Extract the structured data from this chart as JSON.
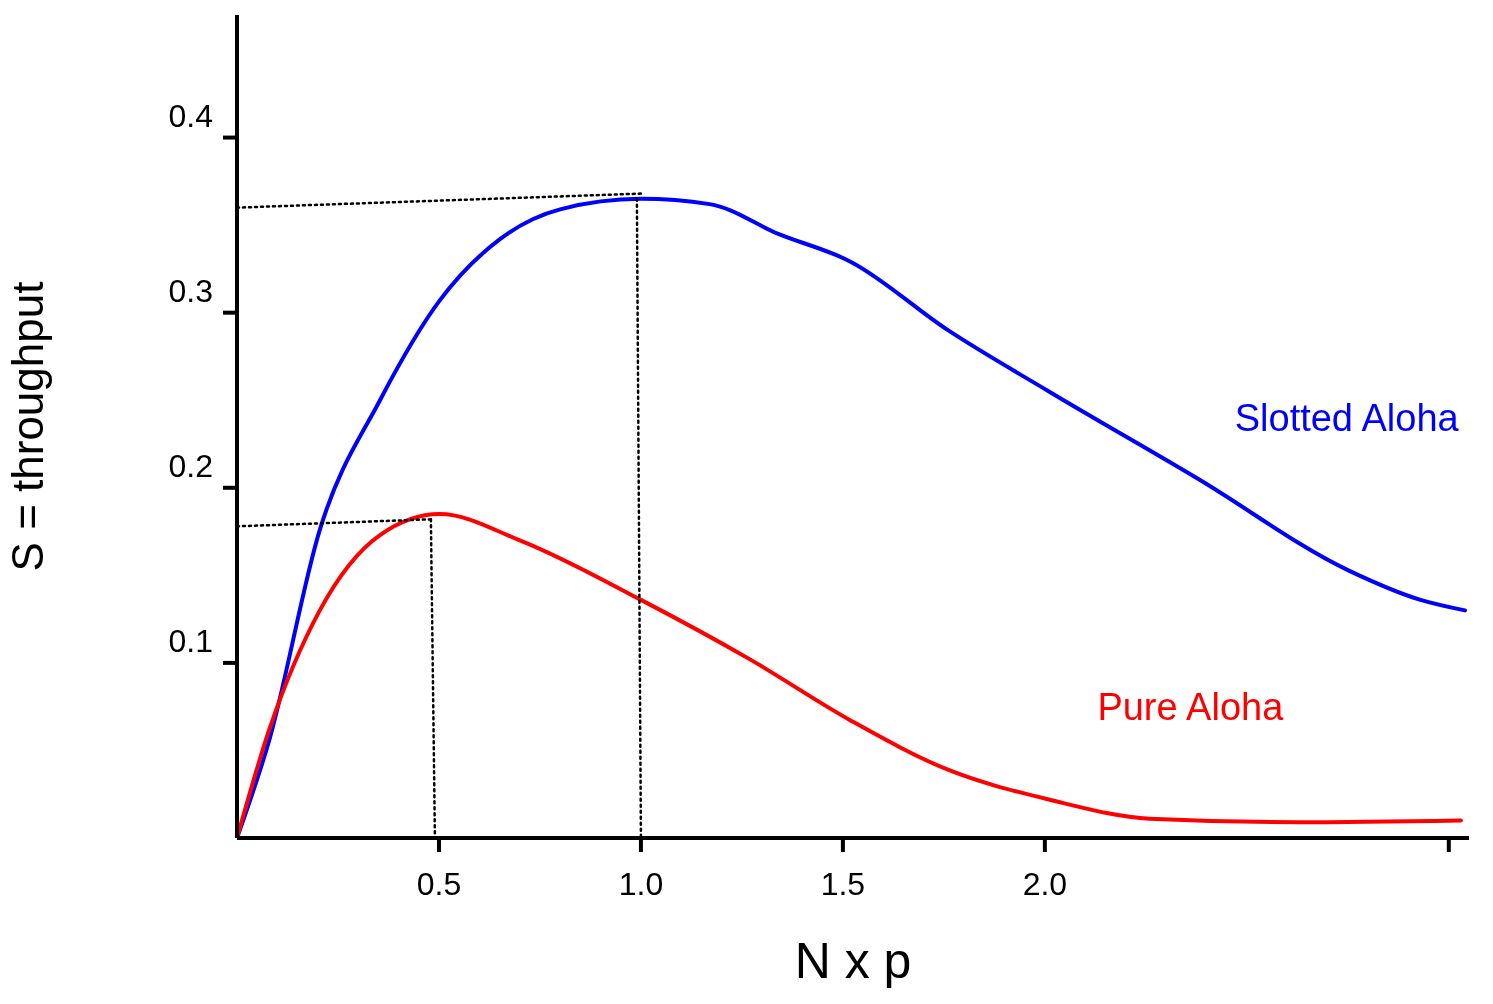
{
  "chart_data": {
    "type": "line",
    "xlabel": "N x p",
    "ylabel": "S = throughput",
    "xlim": [
      0,
      3.05
    ],
    "ylim": [
      0,
      0.47
    ],
    "xticks": [
      0.5,
      {
        "value": 1,
        "label": "1.0"
      },
      1.5,
      {
        "value": 2,
        "label": "2.0"
      },
      {
        "value": 3,
        "label": null
      }
    ],
    "yticks": [
      0.1,
      0.2,
      0.3,
      0.4
    ],
    "marker": "none",
    "line_style": "solid",
    "series": [
      {
        "name": "Slotted Aloha",
        "color": "#0000ff",
        "x": [
          0,
          0.08,
          0.205,
          0.354,
          0.502,
          0.651,
          0.8,
          1.0,
          1.17,
          1.34,
          1.52,
          1.76,
          2.01,
          2.38,
          2.75,
          2.93,
          3.04
        ],
        "values": [
          0,
          0.056,
          0.176,
          0.25,
          0.307,
          0.342,
          0.359,
          0.365,
          0.362,
          0.345,
          0.329,
          0.29,
          0.255,
          0.205,
          0.153,
          0.136,
          0.13
        ]
      },
      {
        "name": "Pure Aloha",
        "color": "#ff0000",
        "x": [
          0,
          0.08,
          0.205,
          0.354,
          0.502,
          0.7,
          1.0,
          1.27,
          1.52,
          1.76,
          2.01,
          2.26,
          2.63,
          3.03
        ],
        "values": [
          0,
          0.062,
          0.13,
          0.173,
          0.185,
          0.17,
          0.136,
          0.102,
          0.067,
          0.039,
          0.022,
          0.011,
          0.009,
          0.01
        ]
      },
      {
        "color": "#000000",
        "line_style": "dotted",
        "x": [
          0,
          1.0
        ],
        "values": [
          0.36,
          0.368
        ]
      },
      {
        "color": "#000000",
        "line_style": "dotted",
        "x": [
          0.99,
          1.0
        ],
        "values": [
          0.365,
          0
        ]
      },
      {
        "color": "#000000",
        "line_style": "dotted",
        "x": [
          0,
          0.48
        ],
        "values": [
          0.178,
          0.182
        ]
      },
      {
        "color": "#000000",
        "line_style": "dotted",
        "x": [
          0.48,
          0.49
        ],
        "values": [
          0.182,
          0
        ]
      }
    ]
  }
}
